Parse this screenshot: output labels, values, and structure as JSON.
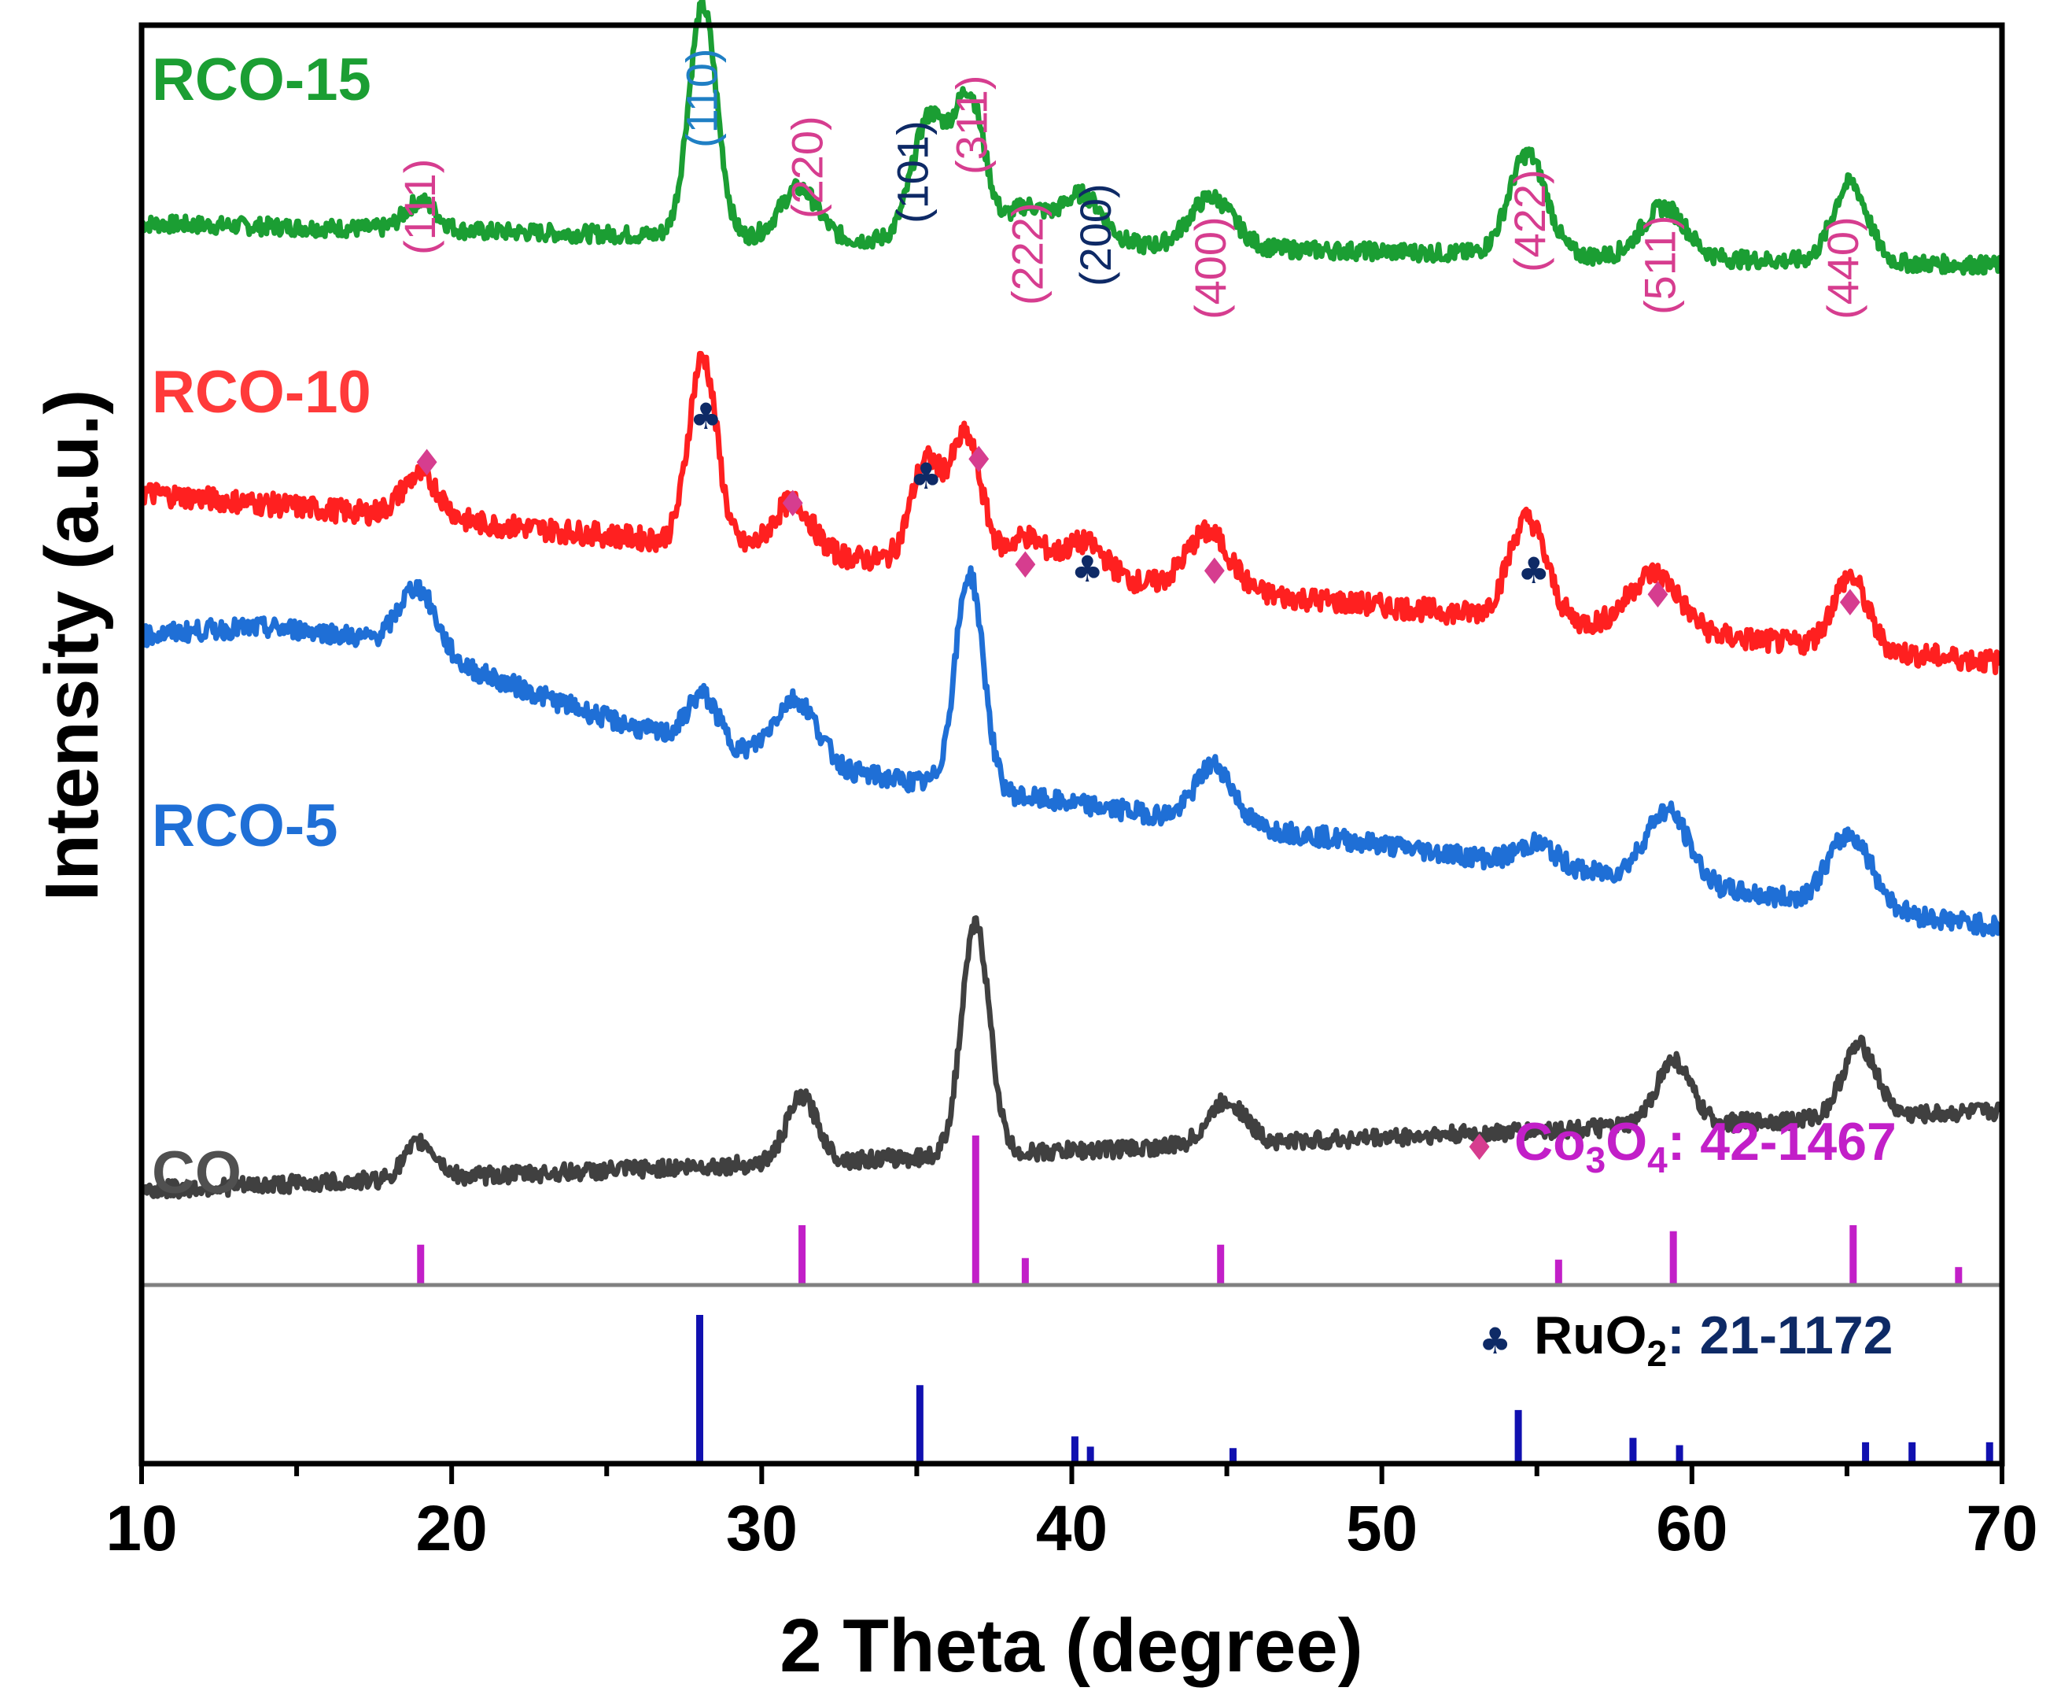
{
  "chart_data": {
    "type": "line",
    "xlabel": "2 Theta (degree)",
    "ylabel": "Intensity (a.u.)",
    "xlim": [
      10,
      70
    ],
    "xticks": [
      10,
      20,
      30,
      40,
      50,
      60,
      70
    ],
    "xtick_labels": [
      "10",
      "20",
      "30",
      "40",
      "50",
      "60",
      "70"
    ],
    "series": [
      {
        "name": "RCO-15",
        "label": "RCO-15",
        "color": "#1b9e33",
        "baseline_start": 0.862,
        "baseline_end": 0.833,
        "noise": 0.006,
        "peaks": [
          [
            19.0,
            0.02,
            0.5
          ],
          [
            28.1,
            0.16,
            0.45
          ],
          [
            31.2,
            0.035,
            0.6
          ],
          [
            35.4,
            0.085,
            0.55
          ],
          [
            36.7,
            0.1,
            0.5
          ],
          [
            38.5,
            0.025,
            0.6
          ],
          [
            40.3,
            0.035,
            0.7
          ],
          [
            44.5,
            0.035,
            0.7
          ],
          [
            54.7,
            0.07,
            0.6
          ],
          [
            59.1,
            0.035,
            0.7
          ],
          [
            65.1,
            0.055,
            0.55
          ]
        ]
      },
      {
        "name": "RCO-10",
        "label": "RCO-10",
        "color": "#ff2020",
        "baseline_start": 0.675,
        "baseline_end": 0.557,
        "noise": 0.008,
        "peaks": [
          [
            19.0,
            0.03,
            0.6
          ],
          [
            28.1,
            0.13,
            0.45
          ],
          [
            31.0,
            0.035,
            0.6
          ],
          [
            35.3,
            0.07,
            0.5
          ],
          [
            36.6,
            0.09,
            0.5
          ],
          [
            38.5,
            0.025,
            0.6
          ],
          [
            40.4,
            0.025,
            0.7
          ],
          [
            44.4,
            0.04,
            0.7
          ],
          [
            54.7,
            0.07,
            0.6
          ],
          [
            58.8,
            0.04,
            0.8
          ],
          [
            65.1,
            0.05,
            0.55
          ]
        ]
      },
      {
        "name": "RCO-5",
        "label": "RCO-5",
        "color": "#1f6fd6",
        "baseline_start": 0.545,
        "baseline_end": 0.373,
        "noise": 0.007,
        "hump": [
          16,
          0.05,
          6
        ],
        "peaks": [
          [
            18.9,
            0.045,
            0.6
          ],
          [
            28.1,
            0.035,
            0.5
          ],
          [
            31.1,
            0.045,
            0.7
          ],
          [
            36.7,
            0.15,
            0.45
          ],
          [
            44.6,
            0.04,
            0.6
          ],
          [
            55.0,
            0.015,
            0.6
          ],
          [
            59.2,
            0.05,
            0.7
          ],
          [
            65.1,
            0.05,
            0.7
          ]
        ]
      },
      {
        "name": "CO",
        "label": "CO",
        "color": "#404040",
        "baseline_start": 0.19,
        "baseline_end": 0.245,
        "noise": 0.006,
        "peaks": [
          [
            19.0,
            0.025,
            0.5
          ],
          [
            31.3,
            0.045,
            0.5
          ],
          [
            36.9,
            0.16,
            0.45
          ],
          [
            45.0,
            0.03,
            0.6
          ],
          [
            59.4,
            0.045,
            0.55
          ],
          [
            65.4,
            0.05,
            0.55
          ]
        ]
      }
    ],
    "reference_Co3O4": {
      "label_prefix": "Co",
      "label_sub1": "3",
      "label_mid": "O",
      "label_sub2": "4",
      "label_suffix": ": 42-1467",
      "marker": "♦",
      "color": "#c21fc8",
      "positions": [
        19.0,
        31.3,
        36.9,
        38.5,
        44.8,
        55.7,
        59.4,
        65.2,
        68.6
      ],
      "intensities": [
        0.27,
        0.4,
        1.0,
        0.18,
        0.27,
        0.17,
        0.36,
        0.4,
        0.12
      ]
    },
    "reference_RuO2": {
      "label_prefix": "RuO",
      "label_sub": "2",
      "label_suffix": ": 21-1172",
      "marker": "♣",
      "color": "#1010b0",
      "positions": [
        28.0,
        35.1,
        40.1,
        40.6,
        45.2,
        54.4,
        58.1,
        59.6,
        65.6,
        67.1,
        69.6
      ],
      "intensities": [
        1.0,
        0.52,
        0.17,
        0.1,
        0.09,
        0.35,
        0.16,
        0.11,
        0.13,
        0.13,
        0.13
      ]
    },
    "hkl_labels": [
      {
        "text": "(111)",
        "x": 19.0,
        "color": "#d63d8f"
      },
      {
        "text": "(110)",
        "x": 28.1,
        "color": "#1f7fc4"
      },
      {
        "text": "(220)",
        "x": 31.5,
        "color": "#d63d8f"
      },
      {
        "text": "(101)",
        "x": 34.9,
        "color": "#0e2a66"
      },
      {
        "text": "(311)",
        "x": 36.8,
        "color": "#d63d8f"
      },
      {
        "text": "(222)",
        "x": 38.6,
        "color": "#d63d8f"
      },
      {
        "text": "(200)",
        "x": 40.8,
        "color": "#0e2a66"
      },
      {
        "text": "(400)",
        "x": 44.5,
        "color": "#d63d8f"
      },
      {
        "text": "(422)",
        "x": 54.8,
        "color": "#d63d8f"
      },
      {
        "text": "(511)",
        "x": 59.0,
        "color": "#d63d8f"
      },
      {
        "text": "(440)",
        "x": 64.9,
        "color": "#d63d8f"
      }
    ],
    "peak_markers": [
      {
        "symbol": "♦",
        "x": 19.2,
        "color": "#d63d8f"
      },
      {
        "symbol": "♣",
        "x": 28.2,
        "color": "#0e2a66"
      },
      {
        "symbol": "♦",
        "x": 31.0,
        "color": "#d63d8f"
      },
      {
        "symbol": "♣",
        "x": 35.3,
        "color": "#0e2a66"
      },
      {
        "symbol": "♦",
        "x": 37.0,
        "color": "#d63d8f"
      },
      {
        "symbol": "♦",
        "x": 38.5,
        "color": "#d63d8f"
      },
      {
        "symbol": "♣",
        "x": 40.5,
        "color": "#0e2a66"
      },
      {
        "symbol": "♦",
        "x": 44.6,
        "color": "#d63d8f"
      },
      {
        "symbol": "♣",
        "x": 54.9,
        "color": "#0e2a66"
      },
      {
        "symbol": "♦",
        "x": 58.9,
        "color": "#d63d8f"
      },
      {
        "symbol": "♦",
        "x": 65.1,
        "color": "#d63d8f"
      }
    ]
  }
}
